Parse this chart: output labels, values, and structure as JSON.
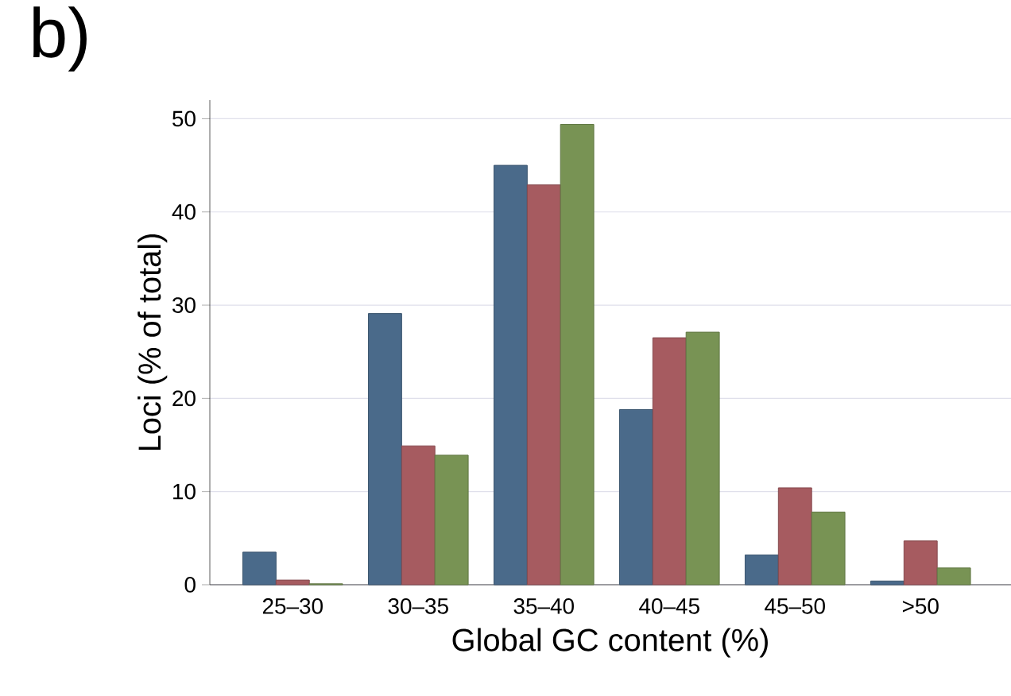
{
  "chart_data": {
    "type": "bar",
    "annotations": [
      "b)"
    ],
    "xlabel": "Global GC content (%)",
    "ylabel": "Loci (% of total)",
    "categories": [
      "25–30",
      "30–35",
      "35–40",
      "40–45",
      "45–50",
      ">50"
    ],
    "series": [
      {
        "color": "#4a6a8a",
        "values": [
          3.5,
          29.1,
          45.0,
          18.8,
          3.2,
          0.4
        ]
      },
      {
        "color": "#a65b60",
        "values": [
          0.5,
          14.9,
          42.9,
          26.5,
          10.4,
          4.7
        ]
      },
      {
        "color": "#789354",
        "values": [
          0.1,
          13.9,
          49.4,
          27.1,
          7.8,
          1.8
        ]
      }
    ],
    "ylim": [
      0,
      52
    ],
    "yticks": [
      0,
      10,
      20,
      30,
      40,
      50
    ],
    "grid": "y"
  }
}
